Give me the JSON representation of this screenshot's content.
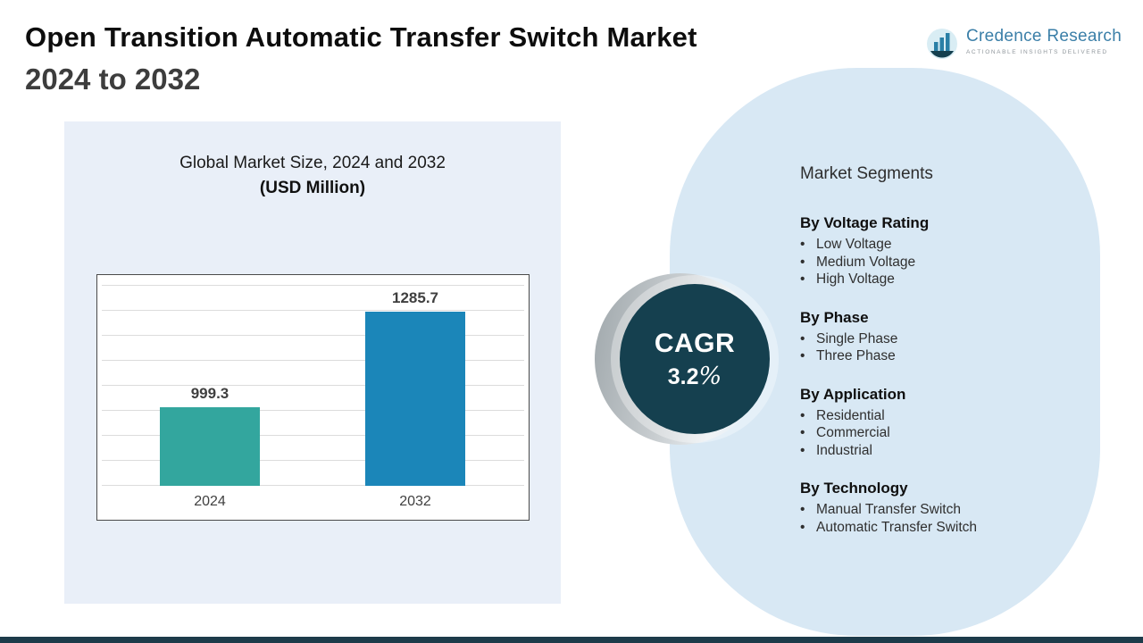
{
  "page": {
    "title": "Open Transition Automatic Transfer Switch Market",
    "subtitle": "2024 to 2032"
  },
  "logo": {
    "name": "Credence Research",
    "tagline": "Actionable Insights Delivered"
  },
  "chart_data": {
    "type": "bar",
    "title": "Global Market Size, 2024 and 2032",
    "subtitle": "(USD Million)",
    "categories": [
      "2024",
      "2032"
    ],
    "values": [
      999.3,
      1285.7
    ],
    "value_labels": [
      "999.3",
      "1285.7"
    ],
    "bar_colors": [
      "#33a69e",
      "#1b86b9"
    ],
    "xlabel": "",
    "ylabel": "",
    "ylim": [
      765,
      1300
    ],
    "grid": true,
    "legend": "none"
  },
  "cagr": {
    "label": "CAGR",
    "value_number": "3.2",
    "value_unit": "%"
  },
  "segments": {
    "heading": "Market Segments",
    "groups": [
      {
        "title": "By Voltage Rating",
        "items": [
          "Low Voltage",
          "Medium Voltage",
          "High Voltage"
        ]
      },
      {
        "title": "By Phase",
        "items": [
          "Single Phase",
          "Three Phase"
        ]
      },
      {
        "title": "By Application",
        "items": [
          "Residential",
          "Commercial",
          "Industrial"
        ]
      },
      {
        "title": "By Technology",
        "items": [
          "Manual Transfer Switch",
          "Automatic Transfer Switch"
        ]
      }
    ]
  }
}
